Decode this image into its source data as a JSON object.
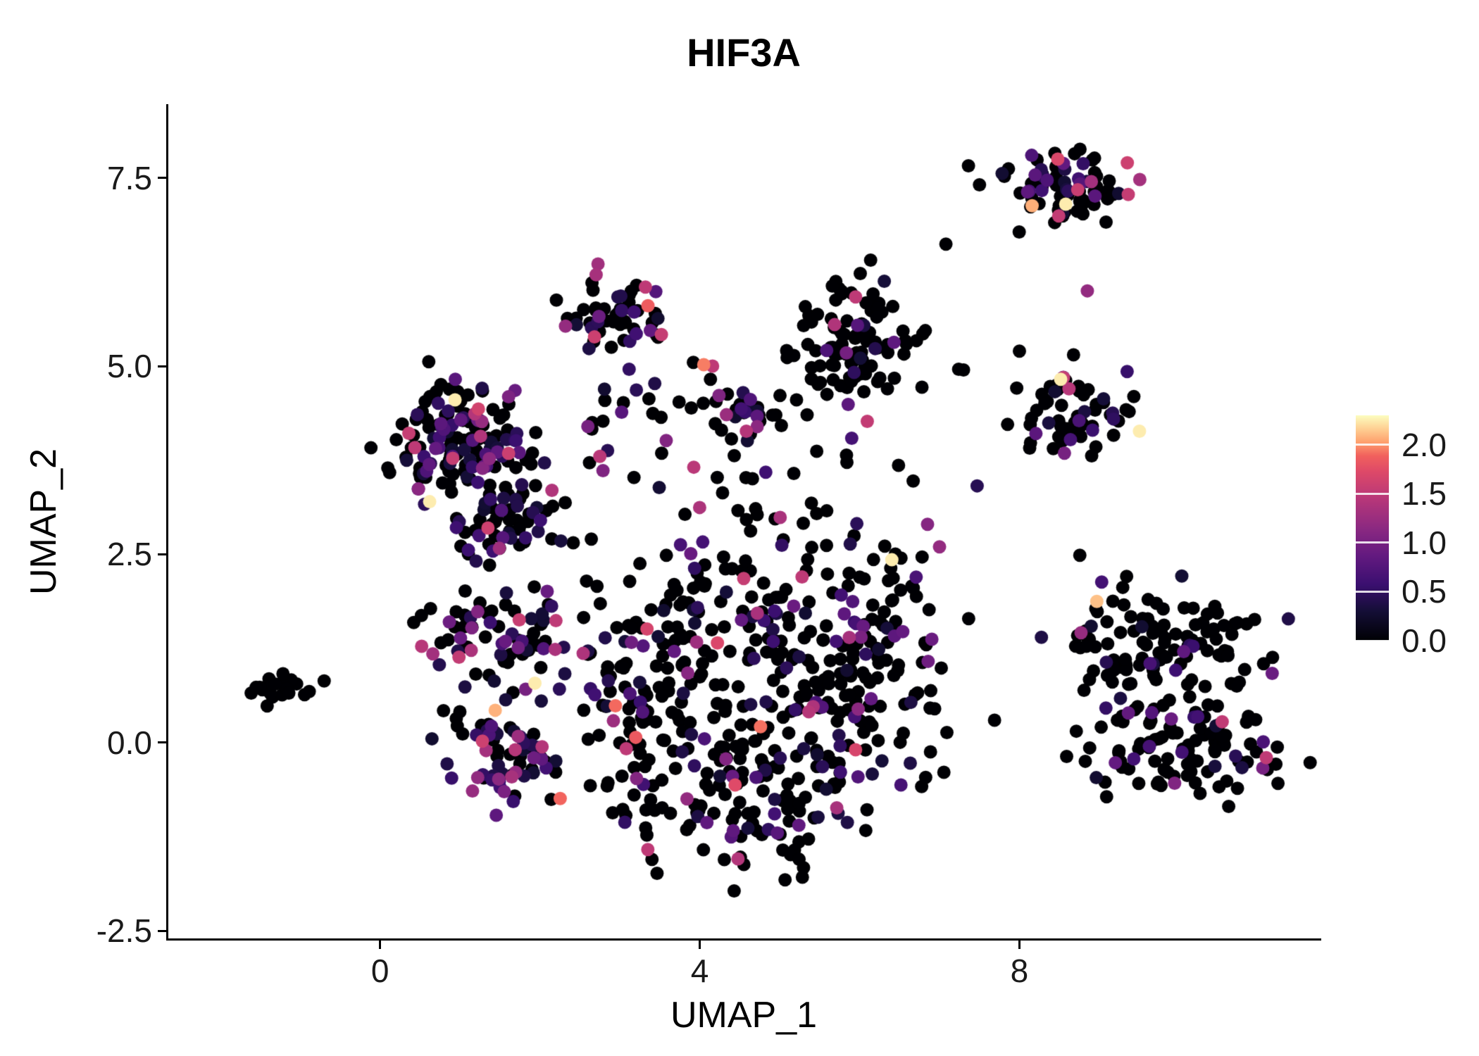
{
  "chart_data": {
    "type": "scatter",
    "title": "HIF3A",
    "xlabel": "UMAP_1",
    "ylabel": "UMAP_2",
    "xlim": [
      -2.65,
      11.75
    ],
    "ylim": [
      -2.6,
      8.46
    ],
    "grid": false,
    "legend_position": "right",
    "x_ticks": [
      {
        "label": "0",
        "value": 0
      },
      {
        "label": "4",
        "value": 4
      },
      {
        "label": "8",
        "value": 8
      }
    ],
    "y_ticks": [
      {
        "label": "7.5",
        "value": 7.5
      },
      {
        "label": "5.0",
        "value": 5.0
      },
      {
        "label": "2.5",
        "value": 2.5
      },
      {
        "label": "0.0",
        "value": 0.0
      },
      {
        "label": "-2.5",
        "value": -2.5
      }
    ],
    "point_radius": 9.5,
    "seed": 42,
    "color_scale": {
      "name": "magma",
      "description": "expression level of HIF3A, black=0 to pale yellow=high",
      "domain": [
        0,
        2.3
      ],
      "legend_ticks": [
        {
          "label": "2.0",
          "value": 2.0
        },
        {
          "label": "1.5",
          "value": 1.5
        },
        {
          "label": "1.0",
          "value": 1.0
        },
        {
          "label": "0.5",
          "value": 0.5
        },
        {
          "label": "0.0",
          "value": 0.0
        }
      ],
      "stops": [
        {
          "t": 0.0,
          "color": "#000004"
        },
        {
          "t": 0.13,
          "color": "#140e36"
        },
        {
          "t": 0.25,
          "color": "#3b0f70"
        },
        {
          "t": 0.38,
          "color": "#641a80"
        },
        {
          "t": 0.5,
          "color": "#8c2981"
        },
        {
          "t": 0.63,
          "color": "#b73779"
        },
        {
          "t": 0.75,
          "color": "#de4968"
        },
        {
          "t": 0.82,
          "color": "#f1605d"
        },
        {
          "t": 0.88,
          "color": "#fe9f6d"
        },
        {
          "t": 0.94,
          "color": "#fecf92"
        },
        {
          "t": 1.0,
          "color": "#fcfdbf"
        }
      ]
    },
    "clusters": [
      {
        "name": "isolated-left",
        "cx": -1.3,
        "cy": 0.75,
        "sx": 0.17,
        "sy": 0.08,
        "n": 22,
        "p": 0,
        "s": 0
      },
      {
        "name": "upper-left-main",
        "cx": 1.05,
        "cy": 4.0,
        "sx": 0.45,
        "sy": 0.38,
        "n": 150,
        "p": 0.5,
        "s": 0.45
      },
      {
        "name": "upper-left-arm",
        "cx": 1.65,
        "cy": 2.9,
        "sx": 0.33,
        "sy": 0.33,
        "n": 55,
        "p": 0.45,
        "s": 0.5
      },
      {
        "name": "left-mid",
        "cx": 1.5,
        "cy": 1.35,
        "sx": 0.5,
        "sy": 0.3,
        "n": 75,
        "p": 0.45,
        "s": 0.5
      },
      {
        "name": "left-lower",
        "cx": 1.6,
        "cy": -0.15,
        "sx": 0.35,
        "sy": 0.35,
        "n": 75,
        "p": 0.55,
        "s": 0.45
      },
      {
        "name": "top-mid",
        "cx": 2.85,
        "cy": 5.7,
        "sx": 0.28,
        "sy": 0.3,
        "n": 55,
        "p": 0.3,
        "s": 0.55
      },
      {
        "name": "mid-band",
        "cx": 4.0,
        "cy": 4.35,
        "sx": 0.95,
        "sy": 0.25,
        "n": 40,
        "p": 0.3,
        "s": 0.5
      },
      {
        "name": "mid-small",
        "cx": 4.6,
        "cy": 4.35,
        "sx": 0.2,
        "sy": 0.12,
        "n": 12,
        "p": 0.5,
        "s": 0.5
      },
      {
        "name": "center-top",
        "cx": 5.95,
        "cy": 5.35,
        "sx": 0.38,
        "sy": 0.45,
        "n": 100,
        "p": 0.12,
        "s": 0.5
      },
      {
        "name": "top-right",
        "cx": 8.6,
        "cy": 7.4,
        "sx": 0.45,
        "sy": 0.26,
        "n": 80,
        "p": 0.3,
        "s": 0.55
      },
      {
        "name": "right-mid",
        "cx": 8.7,
        "cy": 4.45,
        "sx": 0.4,
        "sy": 0.3,
        "n": 65,
        "p": 0.28,
        "s": 0.55
      },
      {
        "name": "central-west",
        "cx": 3.4,
        "cy": 0.5,
        "sx": 0.5,
        "sy": 0.85,
        "n": 110,
        "p": 0.22,
        "s": 0.45
      },
      {
        "name": "central-south",
        "cx": 4.7,
        "cy": -0.7,
        "sx": 0.75,
        "sy": 0.55,
        "n": 130,
        "p": 0.22,
        "s": 0.45
      },
      {
        "name": "central-east",
        "cx": 5.7,
        "cy": 0.7,
        "sx": 0.7,
        "sy": 0.75,
        "n": 130,
        "p": 0.2,
        "s": 0.45
      },
      {
        "name": "central-northeast",
        "cx": 6.4,
        "cy": 1.7,
        "sx": 0.45,
        "sy": 0.5,
        "n": 55,
        "p": 0.25,
        "s": 0.5
      },
      {
        "name": "central-north",
        "cx": 4.3,
        "cy": 1.7,
        "sx": 0.55,
        "sy": 0.45,
        "n": 65,
        "p": 0.28,
        "s": 0.5
      },
      {
        "name": "right-cluster-nw",
        "cx": 9.3,
        "cy": 1.3,
        "sx": 0.4,
        "sy": 0.4,
        "n": 60,
        "p": 0.13,
        "s": 0.45
      },
      {
        "name": "right-cluster-ne",
        "cx": 10.3,
        "cy": 1.4,
        "sx": 0.4,
        "sy": 0.35,
        "n": 55,
        "p": 0.13,
        "s": 0.45
      },
      {
        "name": "right-cluster-sw",
        "cx": 9.6,
        "cy": 0.0,
        "sx": 0.45,
        "sy": 0.4,
        "n": 65,
        "p": 0.13,
        "s": 0.45
      },
      {
        "name": "right-cluster-se",
        "cx": 10.5,
        "cy": -0.1,
        "sx": 0.4,
        "sy": 0.35,
        "n": 50,
        "p": 0.13,
        "s": 0.45
      },
      {
        "name": "mid-connectors",
        "cx": 4.6,
        "cy": 3.2,
        "sx": 1.4,
        "sy": 0.55,
        "n": 45,
        "p": 0.2,
        "s": 0.5
      }
    ],
    "extra_points": [
      [
        0.62,
        3.2,
        2.25
      ],
      [
        1.35,
        2.85,
        1.6
      ],
      [
        2.15,
        3.35,
        1.4
      ],
      [
        3.32,
        6.05,
        1.5
      ],
      [
        3.52,
        5.42,
        1.55
      ],
      [
        4.05,
        5.02,
        1.95
      ],
      [
        4.16,
        5.0,
        1.5
      ],
      [
        5.95,
        5.92,
        1.5
      ],
      [
        8.48,
        7.75,
        1.7
      ],
      [
        9.35,
        7.7,
        1.6
      ],
      [
        8.9,
        7.45,
        1.3
      ],
      [
        8.85,
        6.0,
        1.2
      ],
      [
        8.55,
        4.85,
        1.55
      ],
      [
        8.62,
        4.7,
        1.45
      ],
      [
        4.55,
        2.18,
        1.55
      ],
      [
        5.28,
        2.2,
        1.5
      ],
      [
        3.08,
        -0.08,
        1.5
      ],
      [
        3.35,
        -1.42,
        1.5
      ],
      [
        0.52,
        1.28,
        1.45
      ],
      [
        0.66,
        1.18,
        1.3
      ],
      [
        2.2,
        1.62,
        1.5
      ],
      [
        1.28,
        0.02,
        1.6
      ],
      [
        2.6,
        4.2,
        1.0
      ],
      [
        7.0,
        2.6,
        1.2
      ],
      [
        6.85,
        2.9,
        1.1
      ],
      [
        4.72,
        1.72,
        1.35
      ],
      [
        -0.7,
        0.82,
        0
      ],
      [
        7.08,
        6.62,
        0
      ],
      [
        3.92,
        5.05,
        0
      ],
      [
        8.0,
        5.2,
        0
      ],
      [
        6.78,
        4.72,
        0
      ],
      [
        7.3,
        4.95,
        0
      ]
    ]
  }
}
